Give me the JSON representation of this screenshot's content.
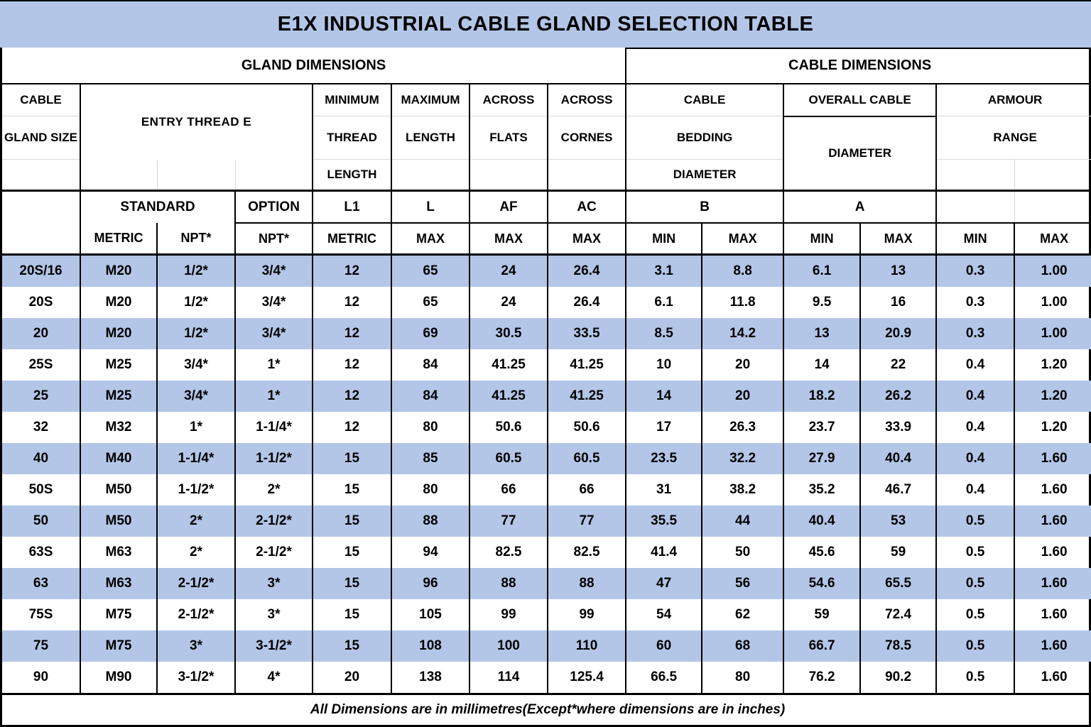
{
  "title": "E1X INDUSTRIAL CABLE GLAND SELECTION TABLE",
  "sections": {
    "gland": "GLAND DIMENSIONS",
    "cable": "CABLE DIMENSIONS"
  },
  "headers": {
    "size": [
      "CABLE",
      "GLAND SIZE"
    ],
    "entry": "ENTRY THREAD E",
    "min_thread": [
      "MINIMUM",
      "THREAD",
      "LENGTH"
    ],
    "max_len": [
      "MAXIMUM",
      "LENGTH"
    ],
    "across_flats": [
      "ACROSS",
      "FLATS"
    ],
    "across_corners": [
      "ACROSS",
      "CORNES"
    ],
    "bedding": [
      "CABLE",
      "BEDDING",
      "DIAMETER"
    ],
    "overall": [
      "OVERALL CABLE",
      "DIAMETER"
    ],
    "armour": [
      "ARMOUR",
      "RANGE"
    ]
  },
  "symbols": {
    "standard": "STANDARD",
    "option": "OPTION",
    "l1": "L1",
    "l": "L",
    "af": "AF",
    "ac": "AC",
    "b": "B",
    "a": "A"
  },
  "units": {
    "metric_std": "METRIC",
    "npt_std": "NPT*",
    "npt_opt": "NPT*",
    "l1": "METRIC",
    "l": "MAX",
    "af": "MAX",
    "ac": "MAX",
    "b_min": "MIN",
    "b_max": "MAX",
    "a_min": "MIN",
    "a_max": "MAX",
    "arm_min": "MIN",
    "arm_max": "MAX"
  },
  "rows": [
    [
      "20S/16",
      "M20",
      "1/2*",
      "3/4*",
      "12",
      "65",
      "24",
      "26.4",
      "3.1",
      "8.8",
      "6.1",
      "13",
      "0.3",
      "1.00"
    ],
    [
      "20S",
      "M20",
      "1/2*",
      "3/4*",
      "12",
      "65",
      "24",
      "26.4",
      "6.1",
      "11.8",
      "9.5",
      "16",
      "0.3",
      "1.00"
    ],
    [
      "20",
      "M20",
      "1/2*",
      "3/4*",
      "12",
      "69",
      "30.5",
      "33.5",
      "8.5",
      "14.2",
      "13",
      "20.9",
      "0.3",
      "1.00"
    ],
    [
      "25S",
      "M25",
      "3/4*",
      "1*",
      "12",
      "84",
      "41.25",
      "41.25",
      "10",
      "20",
      "14",
      "22",
      "0.4",
      "1.20"
    ],
    [
      "25",
      "M25",
      "3/4*",
      "1*",
      "12",
      "84",
      "41.25",
      "41.25",
      "14",
      "20",
      "18.2",
      "26.2",
      "0.4",
      "1.20"
    ],
    [
      "32",
      "M32",
      "1*",
      "1-1/4*",
      "12",
      "80",
      "50.6",
      "50.6",
      "17",
      "26.3",
      "23.7",
      "33.9",
      "0.4",
      "1.20"
    ],
    [
      "40",
      "M40",
      "1-1/4*",
      "1-1/2*",
      "15",
      "85",
      "60.5",
      "60.5",
      "23.5",
      "32.2",
      "27.9",
      "40.4",
      "0.4",
      "1.60"
    ],
    [
      "50S",
      "M50",
      "1-1/2*",
      "2*",
      "15",
      "80",
      "66",
      "66",
      "31",
      "38.2",
      "35.2",
      "46.7",
      "0.4",
      "1.60"
    ],
    [
      "50",
      "M50",
      "2*",
      "2-1/2*",
      "15",
      "88",
      "77",
      "77",
      "35.5",
      "44",
      "40.4",
      "53",
      "0.5",
      "1.60"
    ],
    [
      "63S",
      "M63",
      "2*",
      "2-1/2*",
      "15",
      "94",
      "82.5",
      "82.5",
      "41.4",
      "50",
      "45.6",
      "59",
      "0.5",
      "1.60"
    ],
    [
      "63",
      "M63",
      "2-1/2*",
      "3*",
      "15",
      "96",
      "88",
      "88",
      "47",
      "56",
      "54.6",
      "65.5",
      "0.5",
      "1.60"
    ],
    [
      "75S",
      "M75",
      "2-1/2*",
      "3*",
      "15",
      "105",
      "99",
      "99",
      "54",
      "62",
      "59",
      "72.4",
      "0.5",
      "1.60"
    ],
    [
      "75",
      "M75",
      "3*",
      "3-1/2*",
      "15",
      "108",
      "100",
      "110",
      "60",
      "68",
      "66.7",
      "78.5",
      "0.5",
      "1.60"
    ],
    [
      "90",
      "M90",
      "3-1/2*",
      "4*",
      "20",
      "138",
      "114",
      "125.4",
      "66.5",
      "80",
      "76.2",
      "90.2",
      "0.5",
      "1.60"
    ]
  ],
  "footer": "All Dimensions are in millimetres(Except*where dimensions are in inches)",
  "colors": {
    "accent_blue": "#b3c6e7",
    "grid_black": "#000000",
    "faint_line": "#d9d9d9"
  }
}
